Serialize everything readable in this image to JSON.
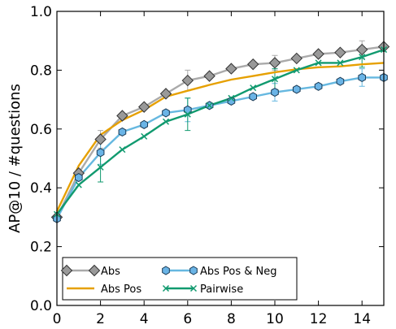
{
  "chart_data": {
    "type": "line",
    "title": "",
    "xlabel": "",
    "ylabel": "AP@10  /  #questions",
    "xlim": [
      0,
      15
    ],
    "ylim": [
      0.0,
      1.0
    ],
    "x_ticks": [
      0,
      2,
      4,
      6,
      8,
      10,
      12,
      14
    ],
    "y_ticks": [
      0.0,
      0.2,
      0.4,
      0.6,
      0.8,
      1.0
    ],
    "x_tick_labels": [
      "0",
      "2",
      "4",
      "6",
      "8",
      "10",
      "12",
      "14"
    ],
    "y_tick_labels": [
      "0.0",
      "0.2",
      "0.4",
      "0.6",
      "0.8",
      "1.0"
    ],
    "grid": false,
    "legend_position": "lower-left",
    "x": [
      0,
      1,
      2,
      3,
      4,
      5,
      6,
      7,
      8,
      9,
      10,
      11,
      12,
      13,
      14,
      15
    ],
    "series": [
      {
        "name": "Abs",
        "color": "#aaaaaa",
        "marker": "diamond",
        "marker_fill": "#999999",
        "values": [
          0.3,
          0.45,
          0.565,
          0.645,
          0.675,
          0.72,
          0.765,
          0.78,
          0.805,
          0.82,
          0.825,
          0.84,
          0.855,
          0.86,
          0.87,
          0.88
        ],
        "errors": [
          0.0,
          0.0,
          0.03,
          0.0,
          0.0,
          0.0,
          0.035,
          0.0,
          0.0,
          0.0,
          0.025,
          0.0,
          0.0,
          0.0,
          0.03,
          0.0
        ]
      },
      {
        "name": "Abs Pos",
        "color": "#e6a000",
        "marker": "none",
        "values": [
          0.32,
          0.475,
          0.58,
          0.63,
          0.665,
          0.71,
          0.73,
          0.75,
          0.768,
          0.78,
          0.793,
          0.803,
          0.81,
          0.813,
          0.82,
          0.825
        ],
        "errors": []
      },
      {
        "name": "Abs Pos & Neg",
        "color": "#66b8e0",
        "marker": "hexagon",
        "marker_fill": "#6ab4e6",
        "values": [
          0.295,
          0.435,
          0.52,
          0.59,
          0.615,
          0.655,
          0.665,
          0.68,
          0.695,
          0.71,
          0.725,
          0.735,
          0.745,
          0.762,
          0.775,
          0.775
        ],
        "errors": [
          0.0,
          0.0,
          0.04,
          0.0,
          0.0,
          0.0,
          0.04,
          0.0,
          0.0,
          0.0,
          0.03,
          0.0,
          0.0,
          0.0,
          0.03,
          0.0
        ]
      },
      {
        "name": "Pairwise",
        "color": "#119a6f",
        "marker": "x",
        "values": [
          0.31,
          0.41,
          0.47,
          0.53,
          0.575,
          0.625,
          0.65,
          0.68,
          0.705,
          0.74,
          0.77,
          0.8,
          0.825,
          0.825,
          0.845,
          0.87
        ],
        "errors": [
          0.0,
          0.0,
          0.05,
          0.0,
          0.0,
          0.0,
          0.055,
          0.0,
          0.0,
          0.0,
          0.035,
          0.0,
          0.0,
          0.0,
          0.035,
          0.0
        ]
      }
    ]
  }
}
